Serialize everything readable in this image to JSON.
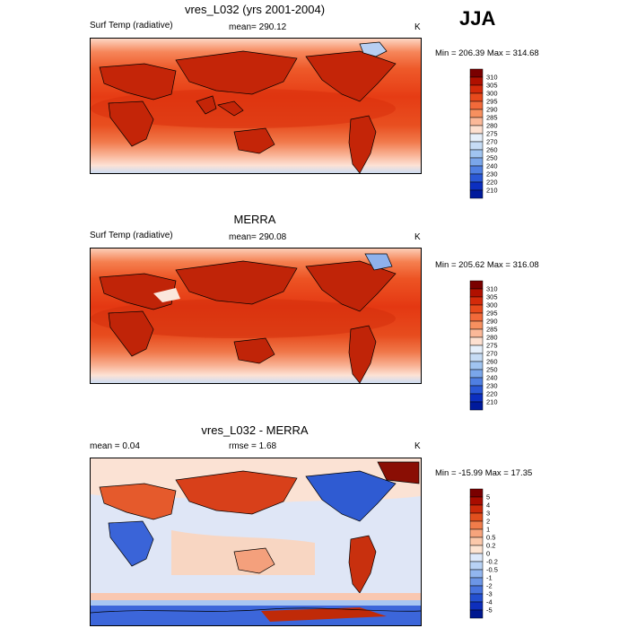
{
  "season": "JJA",
  "panels": [
    {
      "title": "vres_L032 (yrs 2001-2004)",
      "left_label": "Surf Temp (radiative)",
      "center_label": "mean= 290.12",
      "units": "K",
      "minmax": "Min = 206.39 Max = 314.68"
    },
    {
      "title": "MERRA",
      "left_label": "Surf Temp (radiative)",
      "center_label": "mean= 290.08",
      "units": "K",
      "minmax": "Min = 205.62 Max = 316.08"
    },
    {
      "title": "vres_L032 - MERRA",
      "left_label": "mean =   0.04",
      "center_label": "rmse =   1.68",
      "units": "K",
      "minmax": "Min = -15.99 Max =  17.35"
    }
  ],
  "colorbars": {
    "absolute": {
      "labels": [
        "310",
        "305",
        "300",
        "295",
        "290",
        "285",
        "280",
        "275",
        "270",
        "260",
        "250",
        "240",
        "230",
        "220",
        "210"
      ],
      "colors": [
        "#7a0000",
        "#b01000",
        "#d42a0a",
        "#e84a1c",
        "#f26a3a",
        "#f7905f",
        "#fbb898",
        "#fde0d0",
        "#e6f0fb",
        "#c6dcf5",
        "#a0c4f0",
        "#7aa6ea",
        "#4f7fe2",
        "#2a58d6",
        "#0c2fc0",
        "#001a9c"
      ]
    },
    "difference": {
      "labels": [
        "5",
        "4",
        "3",
        "2",
        "1",
        "0.5",
        "0.2",
        "0",
        "-0.2",
        "-0.5",
        "-1",
        "-2",
        "-3",
        "-4",
        "-5"
      ],
      "colors": [
        "#7a0000",
        "#a80c00",
        "#cc2a0a",
        "#e2501e",
        "#f07c4a",
        "#f7a47c",
        "#fbc8aa",
        "#fde4d2",
        "#dde9fb",
        "#b8d2f5",
        "#92b6ef",
        "#6c96e6",
        "#4874de",
        "#2450d0",
        "#0e2fbc",
        "#001890"
      ]
    }
  }
}
